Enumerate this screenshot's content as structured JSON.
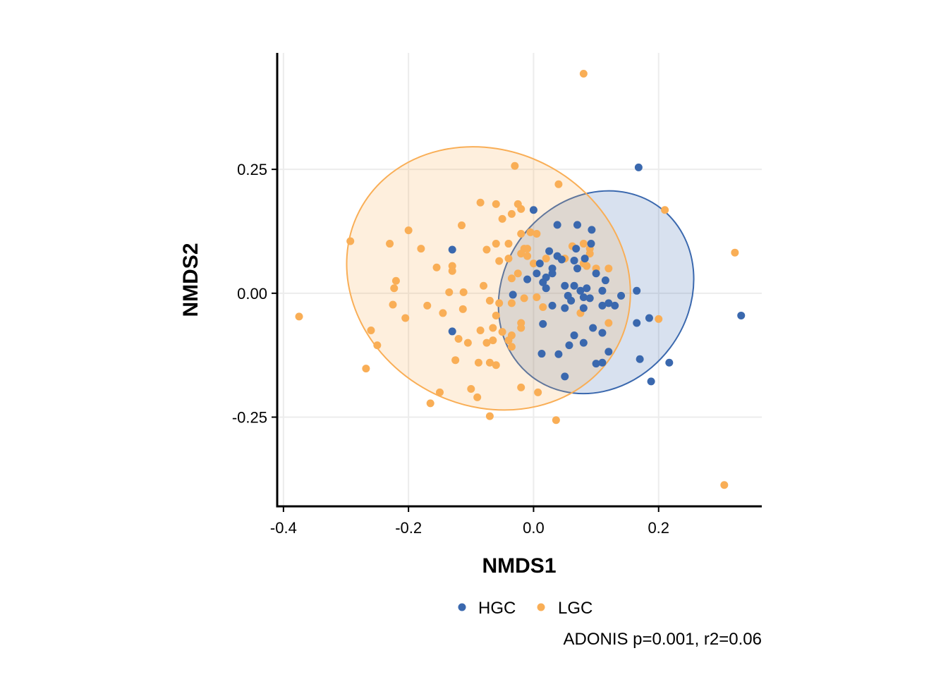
{
  "chart_data": {
    "type": "scatter",
    "xlabel": "NMDS1",
    "ylabel": "NMDS2",
    "xlim": [
      -0.41,
      0.365
    ],
    "ylim": [
      -0.43,
      0.485
    ],
    "x_ticks": [
      -0.4,
      -0.2,
      0.0,
      0.2
    ],
    "x_tick_labels": [
      "-0.4",
      "-0.2",
      "0.0",
      "0.2"
    ],
    "y_ticks": [
      -0.25,
      0.0,
      0.25
    ],
    "y_tick_labels": [
      "-0.25",
      "0.00",
      "0.25"
    ],
    "grid": true,
    "legend_position": "bottom",
    "caption": "ADONIS p=0.001, r2=0.06",
    "series": [
      {
        "name": "HGC",
        "color": "#3A68AE",
        "fill": "#3A68AE",
        "ellipse": {
          "cx": 0.1,
          "cy": 0.002,
          "rx": 0.148,
          "ry": 0.214,
          "angle_deg": 37
        },
        "points": [
          [
            0.0,
            0.168
          ],
          [
            0.07,
            0.138
          ],
          [
            0.093,
            0.128
          ],
          [
            0.038,
            0.138
          ],
          [
            -0.13,
            0.088
          ],
          [
            0.068,
            0.09
          ],
          [
            0.092,
            0.1
          ],
          [
            0.025,
            0.085
          ],
          [
            0.038,
            0.075
          ],
          [
            0.045,
            0.068
          ],
          [
            0.065,
            0.066
          ],
          [
            0.082,
            0.07
          ],
          [
            0.01,
            0.06
          ],
          [
            0.03,
            0.05
          ],
          [
            0.03,
            0.04
          ],
          [
            0.02,
            0.032
          ],
          [
            0.005,
            0.04
          ],
          [
            0.07,
            0.05
          ],
          [
            0.1,
            0.04
          ],
          [
            0.115,
            0.026
          ],
          [
            -0.01,
            0.028
          ],
          [
            0.015,
            0.022
          ],
          [
            0.02,
            0.01
          ],
          [
            0.05,
            0.015
          ],
          [
            0.065,
            0.015
          ],
          [
            0.075,
            0.005
          ],
          [
            0.085,
            0.01
          ],
          [
            0.11,
            0.005
          ],
          [
            0.14,
            -0.005
          ],
          [
            0.165,
            0.005
          ],
          [
            -0.033,
            -0.003
          ],
          [
            0.08,
            -0.008
          ],
          [
            0.09,
            -0.01
          ],
          [
            0.055,
            -0.005
          ],
          [
            0.06,
            -0.015
          ],
          [
            0.03,
            -0.025
          ],
          [
            0.05,
            -0.03
          ],
          [
            0.08,
            -0.03
          ],
          [
            0.11,
            -0.025
          ],
          [
            0.12,
            -0.02
          ],
          [
            0.13,
            -0.025
          ],
          [
            0.185,
            -0.05
          ],
          [
            0.165,
            -0.06
          ],
          [
            0.015,
            -0.062
          ],
          [
            0.095,
            -0.07
          ],
          [
            0.11,
            -0.08
          ],
          [
            0.065,
            -0.085
          ],
          [
            0.08,
            -0.1
          ],
          [
            0.057,
            -0.105
          ],
          [
            0.12,
            -0.118
          ],
          [
            0.013,
            -0.122
          ],
          [
            0.04,
            -0.123
          ],
          [
            0.11,
            -0.14
          ],
          [
            0.1,
            -0.142
          ],
          [
            0.17,
            -0.133
          ],
          [
            0.217,
            -0.14
          ],
          [
            0.05,
            -0.168
          ],
          [
            0.188,
            -0.178
          ],
          [
            -0.13,
            -0.077
          ],
          [
            0.168,
            0.254
          ],
          [
            0.332,
            -0.045
          ]
        ]
      },
      {
        "name": "LGC",
        "color": "#F9AE56",
        "fill": "#F9AE56",
        "ellipse": {
          "cx": -0.072,
          "cy": 0.03,
          "rx": 0.233,
          "ry": 0.257,
          "angle_deg": 28
        },
        "points": [
          [
            -0.03,
            0.257
          ],
          [
            0.04,
            0.22
          ],
          [
            0.08,
            0.443
          ],
          [
            -0.085,
            0.183
          ],
          [
            -0.06,
            0.18
          ],
          [
            -0.025,
            0.18
          ],
          [
            -0.02,
            0.17
          ],
          [
            -0.035,
            0.16
          ],
          [
            -0.05,
            0.15
          ],
          [
            -0.115,
            0.137
          ],
          [
            -0.2,
            0.127
          ],
          [
            -0.293,
            0.105
          ],
          [
            -0.23,
            0.1
          ],
          [
            -0.18,
            0.09
          ],
          [
            -0.075,
            0.088
          ],
          [
            -0.06,
            0.1
          ],
          [
            -0.04,
            0.1
          ],
          [
            -0.02,
            0.12
          ],
          [
            -0.005,
            0.123
          ],
          [
            0.005,
            0.12
          ],
          [
            -0.015,
            0.09
          ],
          [
            -0.02,
            0.08
          ],
          [
            -0.01,
            0.075
          ],
          [
            0.0,
            0.06
          ],
          [
            0.02,
            0.07
          ],
          [
            0.05,
            0.07
          ],
          [
            0.08,
            0.1
          ],
          [
            0.09,
            0.09
          ],
          [
            0.09,
            0.08
          ],
          [
            0.08,
            0.06
          ],
          [
            0.1,
            0.05
          ],
          [
            0.085,
            0.055
          ],
          [
            0.12,
            0.05
          ],
          [
            -0.155,
            0.052
          ],
          [
            -0.13,
            0.055
          ],
          [
            -0.13,
            0.045
          ],
          [
            -0.055,
            0.065
          ],
          [
            -0.04,
            0.07
          ],
          [
            -0.035,
            0.03
          ],
          [
            -0.025,
            0.04
          ],
          [
            -0.08,
            0.015
          ],
          [
            -0.22,
            0.025
          ],
          [
            -0.223,
            0.01
          ],
          [
            -0.135,
            0.002
          ],
          [
            -0.112,
            0.002
          ],
          [
            -0.07,
            -0.015
          ],
          [
            -0.055,
            -0.02
          ],
          [
            -0.035,
            -0.02
          ],
          [
            -0.015,
            -0.01
          ],
          [
            0.005,
            -0.008
          ],
          [
            0.015,
            -0.028
          ],
          [
            -0.17,
            -0.025
          ],
          [
            -0.113,
            -0.032
          ],
          [
            -0.145,
            -0.04
          ],
          [
            -0.225,
            -0.023
          ],
          [
            -0.205,
            -0.05
          ],
          [
            -0.06,
            -0.045
          ],
          [
            -0.02,
            -0.06
          ],
          [
            -0.02,
            -0.07
          ],
          [
            -0.085,
            -0.075
          ],
          [
            -0.065,
            -0.07
          ],
          [
            -0.05,
            -0.078
          ],
          [
            -0.035,
            -0.085
          ],
          [
            -0.04,
            -0.095
          ],
          [
            -0.035,
            -0.108
          ],
          [
            -0.065,
            -0.095
          ],
          [
            -0.12,
            -0.092
          ],
          [
            -0.105,
            -0.1
          ],
          [
            -0.075,
            -0.1
          ],
          [
            -0.26,
            -0.075
          ],
          [
            -0.25,
            -0.105
          ],
          [
            -0.268,
            -0.152
          ],
          [
            -0.088,
            -0.14
          ],
          [
            -0.07,
            -0.14
          ],
          [
            -0.06,
            -0.145
          ],
          [
            -0.125,
            -0.135
          ],
          [
            -0.15,
            -0.2
          ],
          [
            -0.1,
            -0.193
          ],
          [
            -0.09,
            -0.21
          ],
          [
            -0.165,
            -0.222
          ],
          [
            -0.02,
            -0.19
          ],
          [
            0.007,
            -0.2
          ],
          [
            -0.07,
            -0.248
          ],
          [
            0.036,
            -0.256
          ],
          [
            0.21,
            0.168
          ],
          [
            0.322,
            0.082
          ],
          [
            0.2,
            -0.052
          ],
          [
            0.305,
            -0.387
          ],
          [
            -0.375,
            -0.047
          ],
          [
            0.062,
            0.095
          ],
          [
            -0.01,
            0.09
          ],
          [
            0.12,
            -0.06
          ],
          [
            0.075,
            -0.04
          ]
        ]
      }
    ]
  }
}
